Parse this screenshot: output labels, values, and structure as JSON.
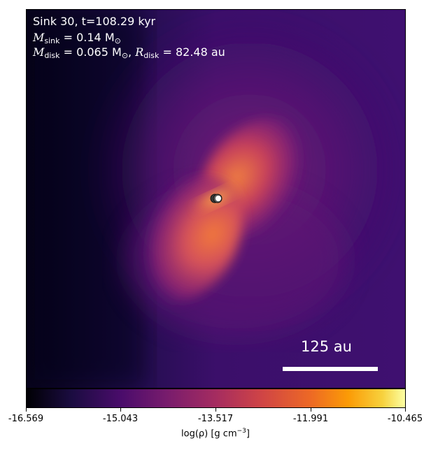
{
  "annotation": {
    "line1": "Sink 30, t=108.29 kyr",
    "msink_symbol": "M",
    "msink_sub": "sink",
    "msink_value": " = 0.14 M",
    "msink_unit_sub": "⊙",
    "mdisk_symbol": "M",
    "mdisk_sub": "disk",
    "mdisk_value": " = 0.065 M",
    "mdisk_unit_sub": "⊙",
    "rdisk_sep": ",  ",
    "rdisk_symbol": "R",
    "rdisk_sub": "disk",
    "rdisk_value": " = 82.48 au"
  },
  "scale_bar": {
    "label": "125 au"
  },
  "colorbar": {
    "colormap": "inferno",
    "ticks": [
      "-16.569",
      "-15.043",
      "-13.517",
      "-11.991",
      "-10.465"
    ],
    "label_main": "log(ρ) [g cm",
    "label_exp": "−3",
    "label_close": "]"
  },
  "colors": {
    "background_dark": "#0d0829",
    "lobe_orange": "#e8683a",
    "core_yellow": "#fbd85a",
    "purple": "#6a1b78"
  }
}
